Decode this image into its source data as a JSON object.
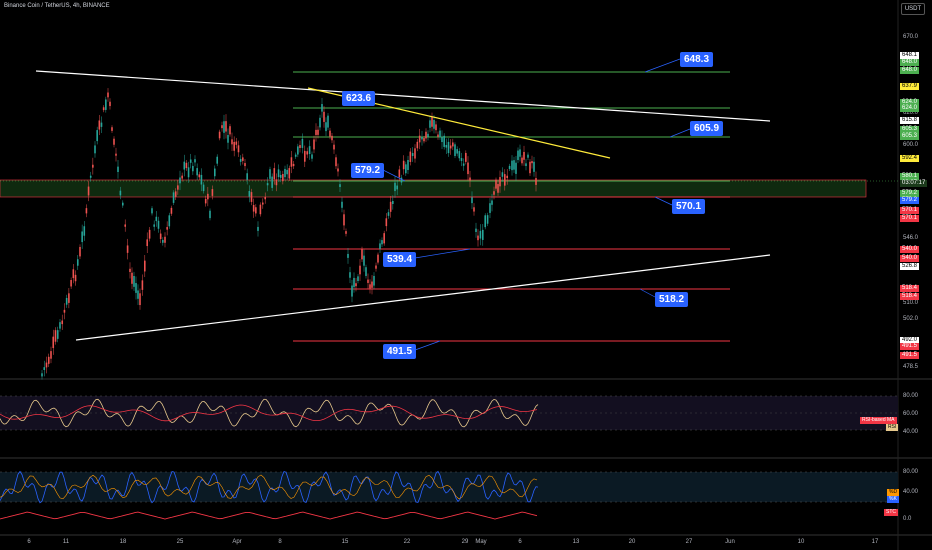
{
  "header": {
    "symbol_title": "Binance Coin / TetherUS, 4h, BINANCE",
    "currency_button": "USDT"
  },
  "price_axis": {
    "ticks": [
      "670.0",
      "620.0",
      "600.0",
      "546.0",
      "510.0",
      "502.0",
      "478.5"
    ],
    "labels": [
      {
        "text": "648.1",
        "color": "#ffffff",
        "name": "pl-648-1"
      },
      {
        "text": "648.0",
        "color": "#4caf50",
        "name": "pl-648-0a"
      },
      {
        "text": "648.0",
        "color": "#4caf50",
        "name": "pl-648-0b"
      },
      {
        "text": "637.9",
        "color": "#ffeb3b",
        "name": "pl-637-9"
      },
      {
        "text": "624.0",
        "color": "#4caf50",
        "name": "pl-624-0a"
      },
      {
        "text": "624.0",
        "color": "#4caf50",
        "name": "pl-624-0b"
      },
      {
        "text": "615.8",
        "color": "#ffffff",
        "name": "pl-615-8"
      },
      {
        "text": "605.3",
        "color": "#4caf50",
        "name": "pl-605-3a"
      },
      {
        "text": "605.3",
        "color": "#4caf50",
        "name": "pl-605-3b"
      },
      {
        "text": "592.4",
        "color": "#ffeb3b",
        "name": "pl-592-4"
      },
      {
        "text": "580.1",
        "color": "#4caf50",
        "name": "pl-580-1"
      },
      {
        "text": "03:07:17",
        "color": "#4caf50",
        "name": "pl-countdown"
      },
      {
        "text": "579.2",
        "color": "#4caf50",
        "name": "pl-579-2a"
      },
      {
        "text": "579.2",
        "color": "#2962ff",
        "name": "pl-579-2b"
      },
      {
        "text": "570.1",
        "color": "#f23645",
        "name": "pl-570-1a"
      },
      {
        "text": "570.1",
        "color": "#f23645",
        "name": "pl-570-1b"
      },
      {
        "text": "540.0",
        "color": "#f23645",
        "name": "pl-540-0a"
      },
      {
        "text": "540.0",
        "color": "#f23645",
        "name": "pl-540-0b"
      },
      {
        "text": "526.8",
        "color": "#ffffff",
        "name": "pl-526-8"
      },
      {
        "text": "518.4",
        "color": "#f23645",
        "name": "pl-518-4a"
      },
      {
        "text": "518.4",
        "color": "#f23645",
        "name": "pl-518-4b"
      },
      {
        "text": "492.0",
        "color": "#ffffff",
        "name": "pl-492-0"
      },
      {
        "text": "491.5",
        "color": "#f23645",
        "name": "pl-491-5a"
      },
      {
        "text": "491.5",
        "color": "#f23645",
        "name": "pl-491-5b"
      }
    ]
  },
  "annotations": {
    "level_648": "648.3",
    "level_623": "623.6",
    "level_605": "605.9",
    "level_579": "579.2",
    "level_570": "570.1",
    "level_539": "539.4",
    "level_518": "518.2",
    "level_491": "491.5"
  },
  "rsi_pane": {
    "ticks": [
      "80.00",
      "60.00",
      "40.00"
    ],
    "label_ma": "RSI-based MA",
    "label_rsi": "RSI"
  },
  "stoch_pane": {
    "ticks": [
      "80.00",
      "40.00",
      "0.0"
    ],
    "label_d": "%D",
    "label_k": "%K",
    "label_stc": "STC"
  },
  "time_axis": [
    "6",
    "11",
    "18",
    "25",
    "Apr",
    "8",
    "15",
    "22",
    "29",
    "May",
    "6",
    "13",
    "20",
    "27",
    "Jun",
    "10",
    "17"
  ],
  "colors": {
    "background": "#000000",
    "support": "#f23645",
    "resistance": "#4caf50",
    "trendline": "#ffffff",
    "yellow_trend": "#ffeb3b",
    "label_box": "#2962ff",
    "rsi_line": "#e6c88c",
    "rsi_ma": "#f23645",
    "stoch_k": "#2962ff",
    "stoch_d": "#ff9800"
  }
}
